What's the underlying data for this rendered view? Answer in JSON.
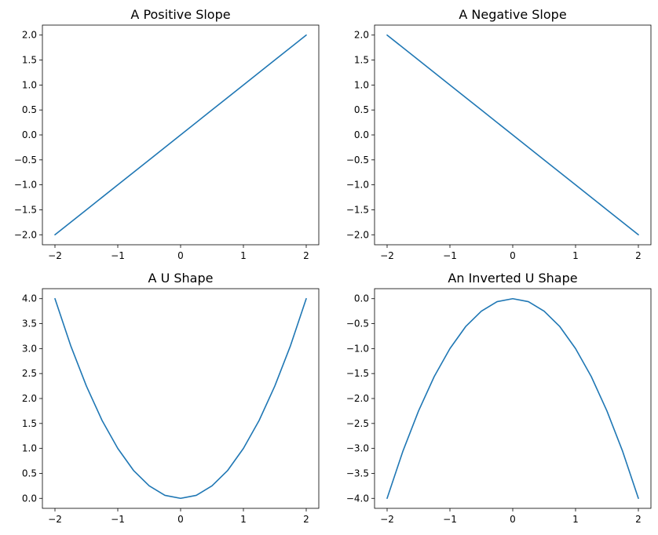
{
  "chart_data": [
    {
      "type": "line",
      "title": "A Positive Slope",
      "xlabel": "",
      "ylabel": "",
      "xlim": [
        -2.2,
        2.2
      ],
      "ylim": [
        -2.2,
        2.2
      ],
      "grid": false,
      "x_ticks": [
        "−2",
        "−1",
        "0",
        "1",
        "2"
      ],
      "x_tick_values": [
        -2,
        -1,
        0,
        1,
        2
      ],
      "y_ticks": [
        "−2.0",
        "−1.5",
        "−1.0",
        "−0.5",
        "0.0",
        "0.5",
        "1.0",
        "1.5",
        "2.0"
      ],
      "y_tick_values": [
        -2.0,
        -1.5,
        -1.0,
        -0.5,
        0.0,
        0.5,
        1.0,
        1.5,
        2.0
      ],
      "series": [
        {
          "color": "#1f77b4",
          "x": [
            -2.0,
            -1.5,
            -1.0,
            -0.5,
            0.0,
            0.5,
            1.0,
            1.5,
            2.0
          ],
          "y": [
            -2.0,
            -1.5,
            -1.0,
            -0.5,
            0.0,
            0.5,
            1.0,
            1.5,
            2.0
          ]
        }
      ]
    },
    {
      "type": "line",
      "title": "A Negative Slope",
      "xlabel": "",
      "ylabel": "",
      "xlim": [
        -2.2,
        2.2
      ],
      "ylim": [
        -2.2,
        2.2
      ],
      "grid": false,
      "x_ticks": [
        "−2",
        "−1",
        "0",
        "1",
        "2"
      ],
      "x_tick_values": [
        -2,
        -1,
        0,
        1,
        2
      ],
      "y_ticks": [
        "−2.0",
        "−1.5",
        "−1.0",
        "−0.5",
        "0.0",
        "0.5",
        "1.0",
        "1.5",
        "2.0"
      ],
      "y_tick_values": [
        -2.0,
        -1.5,
        -1.0,
        -0.5,
        0.0,
        0.5,
        1.0,
        1.5,
        2.0
      ],
      "series": [
        {
          "color": "#1f77b4",
          "x": [
            -2.0,
            -1.5,
            -1.0,
            -0.5,
            0.0,
            0.5,
            1.0,
            1.5,
            2.0
          ],
          "y": [
            2.0,
            1.5,
            1.0,
            0.5,
            0.0,
            -0.5,
            -1.0,
            -1.5,
            -2.0
          ]
        }
      ]
    },
    {
      "type": "line",
      "title": "A U Shape",
      "xlabel": "",
      "ylabel": "",
      "xlim": [
        -2.2,
        2.2
      ],
      "ylim": [
        -0.2,
        4.2
      ],
      "grid": false,
      "x_ticks": [
        "−2",
        "−1",
        "0",
        "1",
        "2"
      ],
      "x_tick_values": [
        -2,
        -1,
        0,
        1,
        2
      ],
      "y_ticks": [
        "0.0",
        "0.5",
        "1.0",
        "1.5",
        "2.0",
        "2.5",
        "3.0",
        "3.5",
        "4.0"
      ],
      "y_tick_values": [
        0.0,
        0.5,
        1.0,
        1.5,
        2.0,
        2.5,
        3.0,
        3.5,
        4.0
      ],
      "series": [
        {
          "color": "#1f77b4",
          "x": [
            -2.0,
            -1.75,
            -1.5,
            -1.25,
            -1.0,
            -0.75,
            -0.5,
            -0.25,
            0.0,
            0.25,
            0.5,
            0.75,
            1.0,
            1.25,
            1.5,
            1.75,
            2.0
          ],
          "y": [
            4.0,
            3.06,
            2.25,
            1.56,
            1.0,
            0.56,
            0.25,
            0.06,
            0.0,
            0.06,
            0.25,
            0.56,
            1.0,
            1.56,
            2.25,
            3.06,
            4.0
          ]
        }
      ]
    },
    {
      "type": "line",
      "title": "An Inverted U Shape",
      "xlabel": "",
      "ylabel": "",
      "xlim": [
        -2.2,
        2.2
      ],
      "ylim": [
        -4.2,
        0.2
      ],
      "grid": false,
      "x_ticks": [
        "−2",
        "−1",
        "0",
        "1",
        "2"
      ],
      "x_tick_values": [
        -2,
        -1,
        0,
        1,
        2
      ],
      "y_ticks": [
        "−4.0",
        "−3.5",
        "−3.0",
        "−2.5",
        "−2.0",
        "−1.5",
        "−1.0",
        "−0.5",
        "0.0"
      ],
      "y_tick_values": [
        -4.0,
        -3.5,
        -3.0,
        -2.5,
        -2.0,
        -1.5,
        -1.0,
        -0.5,
        0.0
      ],
      "series": [
        {
          "color": "#1f77b4",
          "x": [
            -2.0,
            -1.75,
            -1.5,
            -1.25,
            -1.0,
            -0.75,
            -0.5,
            -0.25,
            0.0,
            0.25,
            0.5,
            0.75,
            1.0,
            1.25,
            1.5,
            1.75,
            2.0
          ],
          "y": [
            -4.0,
            -3.06,
            -2.25,
            -1.56,
            -1.0,
            -0.56,
            -0.25,
            -0.06,
            0.0,
            -0.06,
            -0.25,
            -0.56,
            -1.0,
            -1.56,
            -2.25,
            -3.06,
            -4.0
          ]
        }
      ]
    }
  ]
}
